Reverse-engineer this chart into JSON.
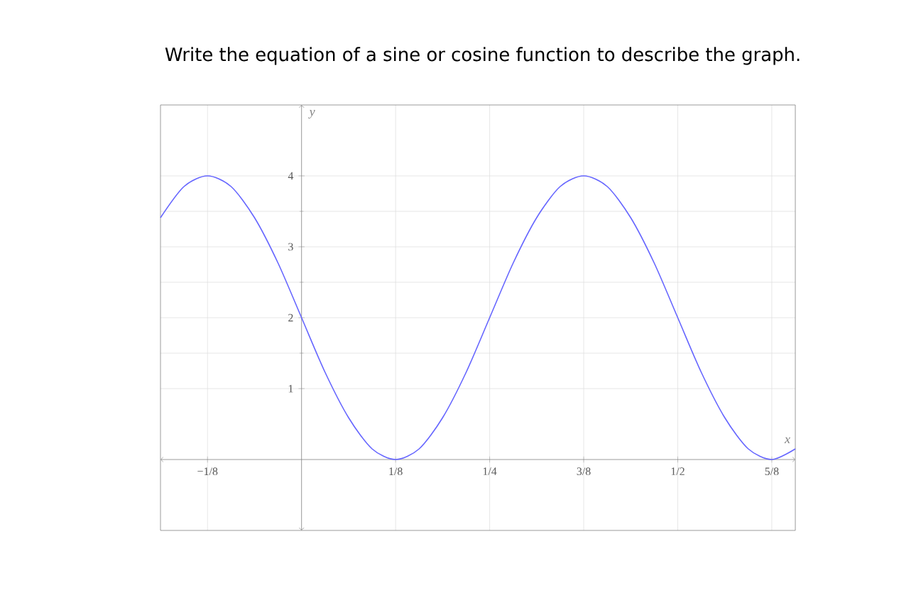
{
  "chart_data": {
    "type": "line",
    "title": "Write the equation of a sine or cosine function to describe the graph.",
    "xlabel": "x",
    "ylabel": "y",
    "x": [
      -0.1875,
      -0.15625,
      -0.125,
      -0.09375,
      -0.0625,
      -0.03125,
      0,
      0.03125,
      0.0625,
      0.09375,
      0.125,
      0.15625,
      0.1875,
      0.21875,
      0.25,
      0.28125,
      0.3125,
      0.34375,
      0.375,
      0.40625,
      0.4375,
      0.46875,
      0.5,
      0.53125,
      0.5625,
      0.59375,
      0.625,
      0.65625
    ],
    "series": [
      {
        "color": "#6666ff",
        "values": [
          3.41,
          3.85,
          4,
          3.85,
          3.41,
          2.77,
          2,
          1.23,
          0.59,
          0.15,
          0,
          0.15,
          0.59,
          1.23,
          2,
          2.77,
          3.41,
          3.85,
          4,
          3.85,
          3.41,
          2.77,
          2,
          1.23,
          0.59,
          0.15,
          0,
          0.15
        ]
      }
    ],
    "xlim": [
      -0.1875,
      0.65625
    ],
    "ylim": [
      -1,
      5
    ],
    "xticks": [
      {
        "value": -0.125,
        "label": "−1/8"
      },
      {
        "value": 0.125,
        "label": "1/8"
      },
      {
        "value": 0.25,
        "label": "1/4"
      },
      {
        "value": 0.375,
        "label": "3/8"
      },
      {
        "value": 0.5,
        "label": "1/2"
      },
      {
        "value": 0.625,
        "label": "5/8"
      }
    ],
    "yticks": [
      1,
      2,
      3,
      4
    ],
    "grid": true,
    "marker": "none",
    "line_style": "solid"
  }
}
